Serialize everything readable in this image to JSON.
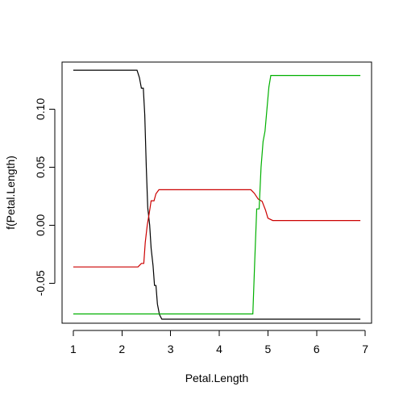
{
  "chart_data": {
    "type": "line",
    "title": "",
    "xlabel": "Petal.Length",
    "ylabel": "f(Petal.Length)",
    "xlim": [
      0.77,
      7.13
    ],
    "ylim": [
      -0.0845,
      0.1405
    ],
    "x_ticks": [
      1,
      2,
      3,
      4,
      5,
      6,
      7
    ],
    "y_ticks": [
      -0.05,
      0.0,
      0.05,
      0.1
    ],
    "y_tick_labels": [
      "-0.05",
      "0.00",
      "0.05",
      "0.10"
    ],
    "grid": false,
    "legend": "none",
    "series": [
      {
        "color": "#000000",
        "points": [
          [
            1.0,
            0.1335
          ],
          [
            2.31,
            0.1335
          ],
          [
            2.36,
            0.127
          ],
          [
            2.4,
            0.118
          ],
          [
            2.44,
            0.118
          ],
          [
            2.47,
            0.095
          ],
          [
            2.5,
            0.05
          ],
          [
            2.53,
            0.015
          ],
          [
            2.57,
            0.0
          ],
          [
            2.6,
            -0.02
          ],
          [
            2.64,
            -0.035
          ],
          [
            2.67,
            -0.052
          ],
          [
            2.7,
            -0.052
          ],
          [
            2.73,
            -0.068
          ],
          [
            2.77,
            -0.077
          ],
          [
            2.82,
            -0.081
          ],
          [
            6.9,
            -0.081
          ]
        ]
      },
      {
        "color": "#cc0000",
        "points": [
          [
            1.0,
            -0.036
          ],
          [
            2.33,
            -0.036
          ],
          [
            2.4,
            -0.033
          ],
          [
            2.45,
            -0.033
          ],
          [
            2.48,
            -0.015
          ],
          [
            2.52,
            0.0
          ],
          [
            2.56,
            0.01
          ],
          [
            2.6,
            0.021
          ],
          [
            2.66,
            0.021
          ],
          [
            2.7,
            0.027
          ],
          [
            2.76,
            0.0305
          ],
          [
            4.65,
            0.0305
          ],
          [
            4.72,
            0.0275
          ],
          [
            4.8,
            0.0225
          ],
          [
            4.88,
            0.0205
          ],
          [
            4.95,
            0.013
          ],
          [
            5.0,
            0.006
          ],
          [
            5.1,
            0.004
          ],
          [
            6.9,
            0.004
          ]
        ]
      },
      {
        "color": "#00b000",
        "points": [
          [
            1.0,
            -0.0765
          ],
          [
            4.69,
            -0.0765
          ],
          [
            4.73,
            -0.03
          ],
          [
            4.77,
            0.014
          ],
          [
            4.82,
            0.014
          ],
          [
            4.86,
            0.05
          ],
          [
            4.9,
            0.072
          ],
          [
            4.94,
            0.081
          ],
          [
            4.98,
            0.1
          ],
          [
            5.02,
            0.119
          ],
          [
            5.06,
            0.129
          ],
          [
            6.9,
            0.129
          ]
        ]
      }
    ]
  }
}
